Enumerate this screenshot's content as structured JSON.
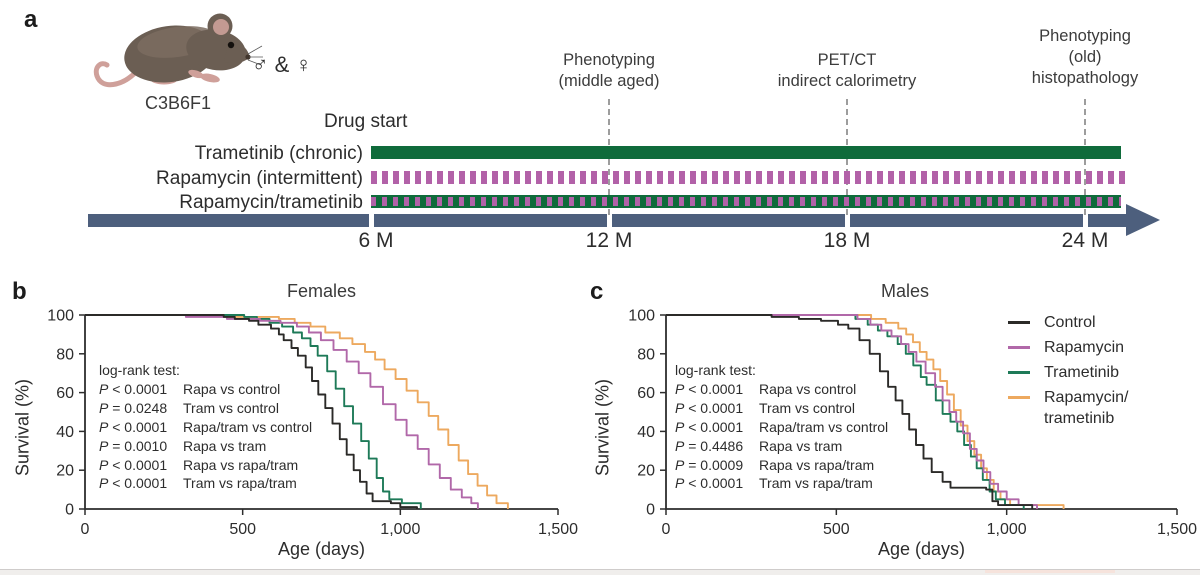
{
  "colors": {
    "control": "#2b2a28",
    "rapamycin": "#b168a9",
    "trametinib": "#1e7a58",
    "combo_orange": "#eda95f",
    "bar_green": "#0f6b3b",
    "bar_purple": "#b261a8",
    "timeline_slate": "#4d5f7d"
  },
  "panel_a": {
    "letter": "a",
    "strain": "C3B6F1",
    "sex_symbols": "♂ & ♀",
    "drug_start_label": "Drug start",
    "rows": [
      {
        "label": "Trametinib (chronic)",
        "pattern": "solid green bar"
      },
      {
        "label": "Rapamycin (intermittent)",
        "pattern": "purple dashed bar"
      },
      {
        "label": "Rapamycin/trametinib",
        "pattern": "green bar with purple dashes"
      }
    ],
    "annotations": [
      {
        "text": "Phenotyping\n(middle aged)",
        "at": "12 M"
      },
      {
        "text": "PET/CT\nindirect calorimetry",
        "at": "18 M"
      },
      {
        "text": "Phenotyping\n(old)\nhistopathology",
        "at": "24 M"
      }
    ],
    "timeline_ticks": [
      "6 M",
      "12 M",
      "18 M",
      "24 M"
    ]
  },
  "panels": {
    "b": {
      "letter": "b",
      "logrank_header": "log-rank test:",
      "logrank": [
        {
          "p": "P < 0.0001",
          "label": "Rapa vs control"
        },
        {
          "p": "P = 0.0248",
          "label": "Tram vs control"
        },
        {
          "p": "P < 0.0001",
          "label": "Rapa/tram vs control"
        },
        {
          "p": "P = 0.0010",
          "label": "Rapa vs tram"
        },
        {
          "p": "P < 0.0001",
          "label": "Rapa vs rapa/tram"
        },
        {
          "p": "P < 0.0001",
          "label": "Tram vs rapa/tram"
        }
      ]
    },
    "c": {
      "letter": "c",
      "logrank_header": "log-rank test:",
      "logrank": [
        {
          "p": "P < 0.0001",
          "label": "Rapa vs control"
        },
        {
          "p": "P < 0.0001",
          "label": "Tram vs control"
        },
        {
          "p": "P < 0.0001",
          "label": "Rapa/tram vs control"
        },
        {
          "p": "P = 0.4486",
          "label": "Rapa vs tram"
        },
        {
          "p": "P = 0.0009",
          "label": "Rapa vs rapa/tram"
        },
        {
          "p": "P < 0.0001",
          "label": "Tram vs rapa/tram"
        }
      ]
    }
  },
  "legend": {
    "position": "top-right of panel c",
    "items": [
      {
        "label": "Control",
        "color": "#2b2a28"
      },
      {
        "label": "Rapamycin",
        "color": "#b168a9"
      },
      {
        "label": "Trametinib",
        "color": "#1e7a58"
      },
      {
        "label": "Rapamycin/\ntrametinib",
        "color": "#eda95f"
      }
    ]
  },
  "chart_data": [
    {
      "type": "line",
      "subtype": "kaplan-meier-step",
      "title": "Females",
      "xlabel": "Age (days)",
      "ylabel": "Survival (%)",
      "xlim": [
        0,
        1500
      ],
      "ylim": [
        0,
        100
      ],
      "xticks": [
        0,
        500,
        1000,
        1500
      ],
      "xtick_labels": [
        "0",
        "500",
        "1,000",
        "1,500"
      ],
      "yticks": [
        0,
        20,
        40,
        60,
        80,
        100
      ],
      "grid": false,
      "series": [
        {
          "name": "Control",
          "color": "#2b2a28",
          "points": [
            [
              0,
              100
            ],
            [
              310,
              100
            ],
            [
              440,
              99
            ],
            [
              475,
              98
            ],
            [
              520,
              97
            ],
            [
              550,
              95
            ],
            [
              590,
              93
            ],
            [
              615,
              90
            ],
            [
              630,
              87
            ],
            [
              655,
              83
            ],
            [
              675,
              79
            ],
            [
              700,
              73
            ],
            [
              720,
              66
            ],
            [
              740,
              59
            ],
            [
              762,
              52
            ],
            [
              785,
              44
            ],
            [
              808,
              36
            ],
            [
              830,
              28
            ],
            [
              852,
              20
            ],
            [
              872,
              14
            ],
            [
              893,
              8
            ],
            [
              912,
              4
            ],
            [
              970,
              3
            ],
            [
              1000,
              1
            ],
            [
              1053,
              0
            ]
          ]
        },
        {
          "name": "Rapamycin",
          "color": "#b168a9",
          "points": [
            [
              0,
              100
            ],
            [
              320,
              99
            ],
            [
              450,
              98
            ],
            [
              555,
              97
            ],
            [
              620,
              96
            ],
            [
              672,
              94
            ],
            [
              710,
              91
            ],
            [
              748,
              87
            ],
            [
              788,
              82
            ],
            [
              830,
              76
            ],
            [
              868,
              70
            ],
            [
              905,
              63
            ],
            [
              945,
              54
            ],
            [
              985,
              46
            ],
            [
              1020,
              38
            ],
            [
              1055,
              31
            ],
            [
              1090,
              23
            ],
            [
              1125,
              16
            ],
            [
              1160,
              10
            ],
            [
              1195,
              6
            ],
            [
              1225,
              3
            ],
            [
              1246,
              0
            ]
          ]
        },
        {
          "name": "Trametinib",
          "color": "#1e7a58",
          "points": [
            [
              0,
              100
            ],
            [
              470,
              100
            ],
            [
              505,
              99
            ],
            [
              545,
              98
            ],
            [
              585,
              96
            ],
            [
              625,
              94
            ],
            [
              660,
              91
            ],
            [
              688,
              88
            ],
            [
              715,
              84
            ],
            [
              738,
              79
            ],
            [
              768,
              71
            ],
            [
              795,
              62
            ],
            [
              822,
              53
            ],
            [
              850,
              44
            ],
            [
              876,
              35
            ],
            [
              900,
              26
            ],
            [
              925,
              16
            ],
            [
              945,
              9
            ],
            [
              965,
              5
            ],
            [
              1005,
              3
            ],
            [
              1065,
              0
            ]
          ]
        },
        {
          "name": "Rapamycin/trametinib",
          "color": "#eda95f",
          "points": [
            [
              0,
              100
            ],
            [
              450,
              99
            ],
            [
              560,
              99
            ],
            [
              615,
              98
            ],
            [
              665,
              96
            ],
            [
              715,
              94
            ],
            [
              762,
              91
            ],
            [
              808,
              88
            ],
            [
              848,
              85
            ],
            [
              888,
              81
            ],
            [
              920,
              77
            ],
            [
              950,
              72
            ],
            [
              985,
              67
            ],
            [
              1020,
              61
            ],
            [
              1055,
              55
            ],
            [
              1090,
              48
            ],
            [
              1120,
              41
            ],
            [
              1152,
              33
            ],
            [
              1185,
              25
            ],
            [
              1215,
              18
            ],
            [
              1245,
              12
            ],
            [
              1275,
              7
            ],
            [
              1305,
              3
            ],
            [
              1341,
              0
            ]
          ]
        }
      ]
    },
    {
      "type": "line",
      "subtype": "kaplan-meier-step",
      "title": "Males",
      "xlabel": "Age (days)",
      "ylabel": "Survival (%)",
      "xlim": [
        0,
        1500
      ],
      "ylim": [
        0,
        100
      ],
      "xticks": [
        0,
        500,
        1000,
        1500
      ],
      "xtick_labels": [
        "0",
        "500",
        "1,000",
        "1,500"
      ],
      "yticks": [
        0,
        20,
        40,
        60,
        80,
        100
      ],
      "grid": false,
      "series": [
        {
          "name": "Control",
          "color": "#2b2a28",
          "points": [
            [
              0,
              100
            ],
            [
              310,
              99
            ],
            [
              390,
              98
            ],
            [
              455,
              97
            ],
            [
              505,
              95
            ],
            [
              535,
              93
            ],
            [
              568,
              87
            ],
            [
              598,
              80
            ],
            [
              628,
              71
            ],
            [
              652,
              63
            ],
            [
              674,
              56
            ],
            [
              694,
              49
            ],
            [
              714,
              41
            ],
            [
              734,
              33
            ],
            [
              756,
              26
            ],
            [
              780,
              19
            ],
            [
              812,
              14
            ],
            [
              835,
              11
            ],
            [
              940,
              10
            ],
            [
              958,
              4
            ],
            [
              975,
              2
            ],
            [
              1075,
              0
            ]
          ]
        },
        {
          "name": "Rapamycin",
          "color": "#b168a9",
          "points": [
            [
              0,
              100
            ],
            [
              525,
              100
            ],
            [
              562,
              98
            ],
            [
              600,
              95
            ],
            [
              632,
              92
            ],
            [
              662,
              89
            ],
            [
              690,
              85
            ],
            [
              712,
              81
            ],
            [
              735,
              76
            ],
            [
              762,
              70
            ],
            [
              790,
              63
            ],
            [
              812,
              56
            ],
            [
              832,
              50
            ],
            [
              852,
              45
            ],
            [
              872,
              39
            ],
            [
              892,
              31
            ],
            [
              912,
              25
            ],
            [
              932,
              19
            ],
            [
              952,
              13
            ],
            [
              975,
              9
            ],
            [
              1000,
              5
            ],
            [
              1035,
              2
            ],
            [
              1089,
              0
            ]
          ]
        },
        {
          "name": "Trametinib",
          "color": "#1e7a58",
          "points": [
            [
              0,
              100
            ],
            [
              520,
              100
            ],
            [
              556,
              98
            ],
            [
              592,
              95
            ],
            [
              622,
              92
            ],
            [
              650,
              89
            ],
            [
              680,
              85
            ],
            [
              704,
              80
            ],
            [
              726,
              74
            ],
            [
              748,
              68
            ],
            [
              765,
              64
            ],
            [
              792,
              56
            ],
            [
              812,
              49
            ],
            [
              835,
              45
            ],
            [
              855,
              40
            ],
            [
              875,
              33
            ],
            [
              895,
              27
            ],
            [
              912,
              21
            ],
            [
              930,
              15
            ],
            [
              950,
              9
            ],
            [
              968,
              5
            ],
            [
              995,
              2
            ],
            [
              1050,
              0
            ]
          ]
        },
        {
          "name": "Rapamycin/trametinib",
          "color": "#eda95f",
          "points": [
            [
              0,
              100
            ],
            [
              560,
              100
            ],
            [
              602,
              98
            ],
            [
              645,
              96
            ],
            [
              682,
              93
            ],
            [
              705,
              90
            ],
            [
              725,
              86
            ],
            [
              745,
              81
            ],
            [
              765,
              77
            ],
            [
              785,
              72
            ],
            [
              805,
              66
            ],
            [
              825,
              59
            ],
            [
              845,
              51
            ],
            [
              865,
              43
            ],
            [
              885,
              35
            ],
            [
              905,
              28
            ],
            [
              925,
              21
            ],
            [
              942,
              15
            ],
            [
              962,
              9
            ],
            [
              982,
              5
            ],
            [
              1010,
              2
            ],
            [
              1155,
              2
            ],
            [
              1167,
              0
            ]
          ]
        }
      ]
    }
  ]
}
